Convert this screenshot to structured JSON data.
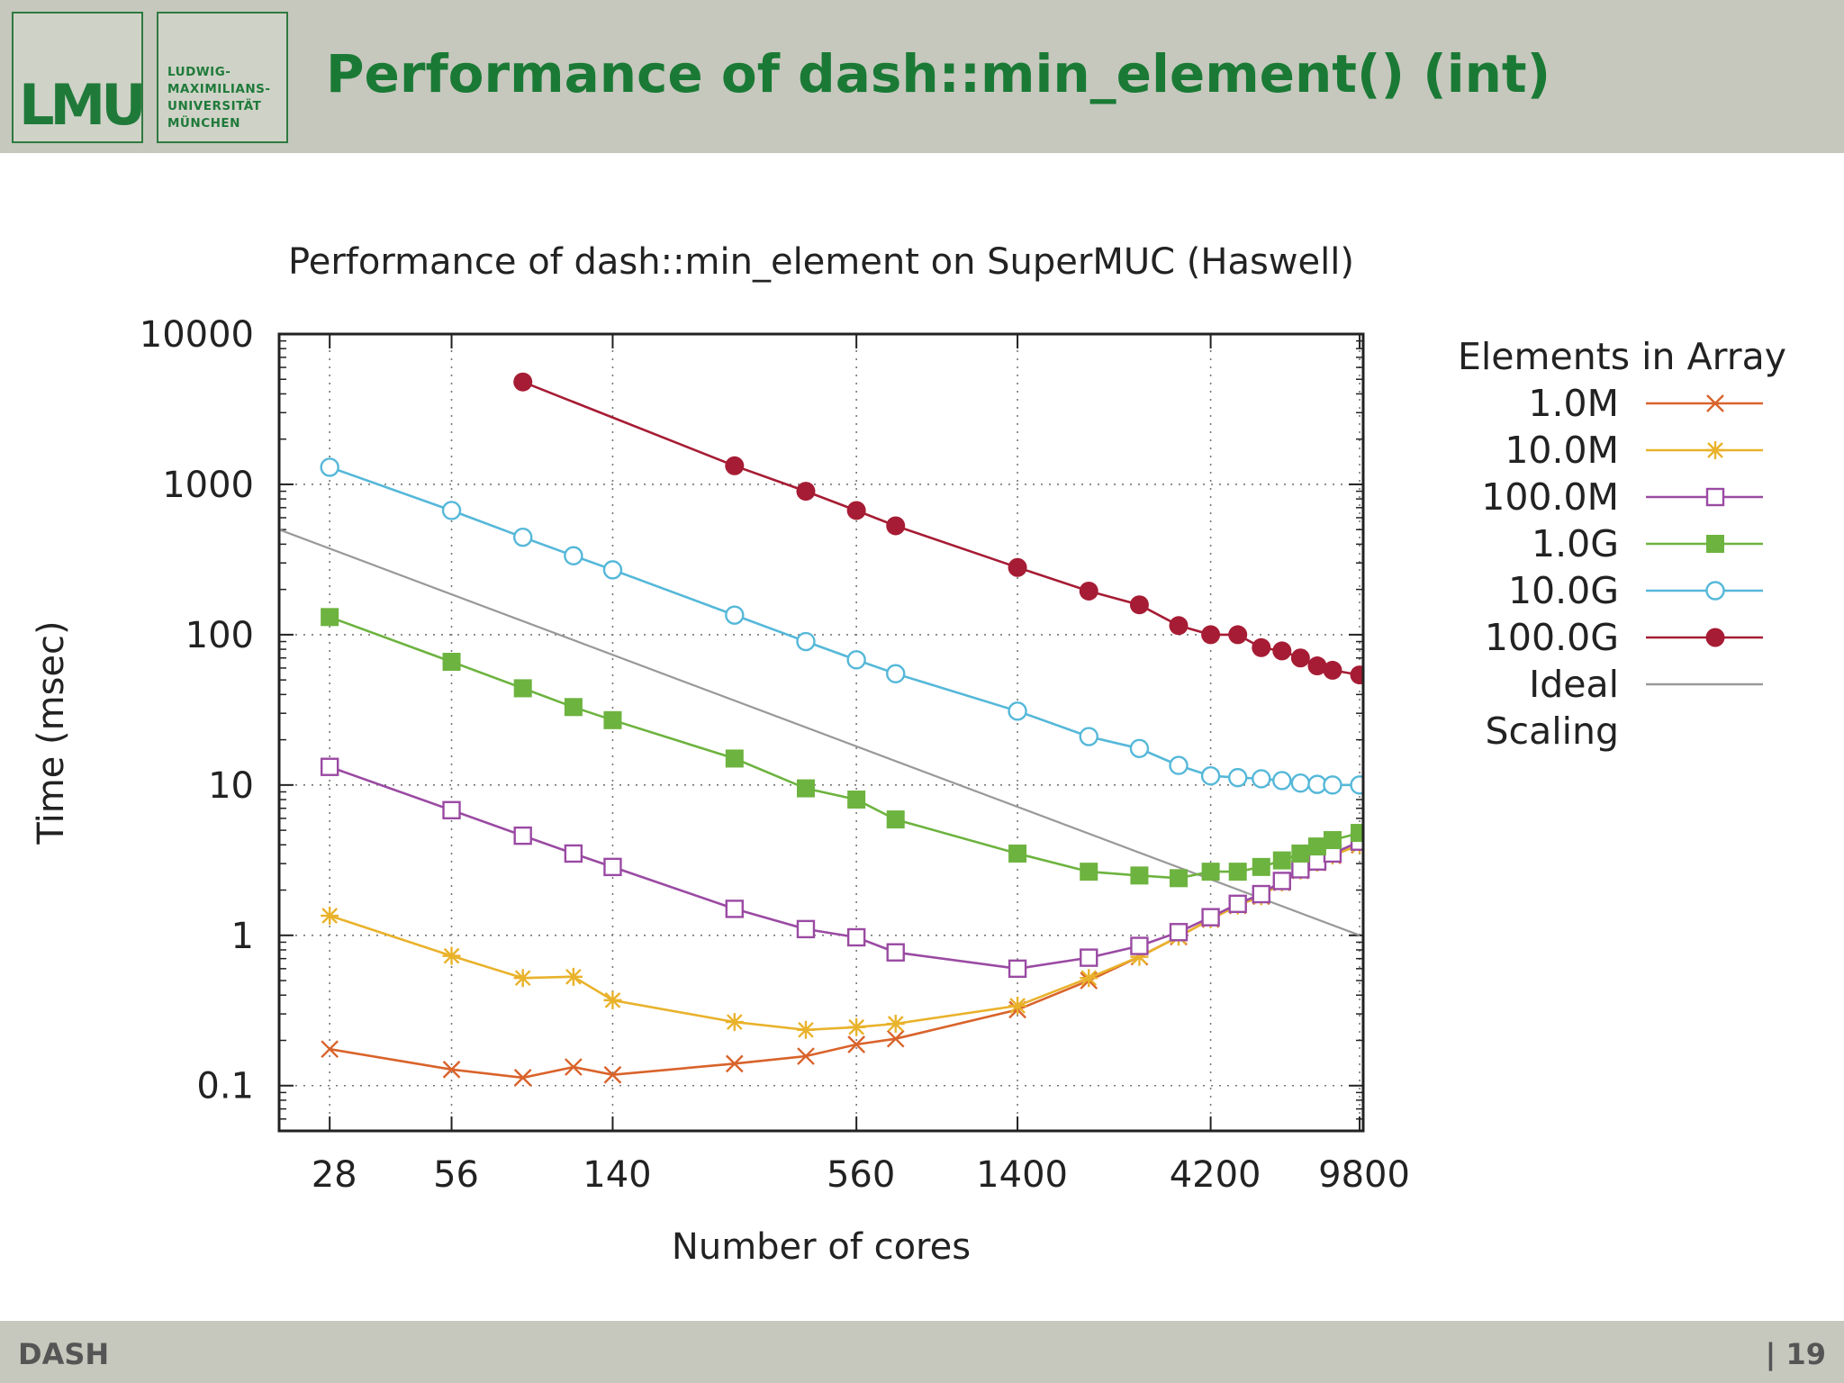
{
  "header": {
    "logo_mark": "LMU",
    "logo_name_lines": [
      "LUDWIG-",
      "MAXIMILIANS-",
      "UNIVERSITÄT",
      "MÜNCHEN"
    ],
    "title": "Performance of dash::min_element() (int)",
    "accent_color": "#1a7a35"
  },
  "footer": {
    "left": "DASH",
    "right": "| 19"
  },
  "chart_data": {
    "type": "line",
    "title": "Performance of dash::min_element on SuperMUC (Haswell)",
    "xlabel": "Number of cores",
    "ylabel": "Time (msec)",
    "xscale": "log",
    "yscale": "log",
    "xlim": [
      21,
      10000
    ],
    "ylim": [
      0.05,
      10000
    ],
    "xticks": [
      28,
      56,
      140,
      560,
      1400,
      4200,
      9800
    ],
    "xtick_labels": [
      "28",
      "56",
      "140",
      "560",
      "1400",
      "4200",
      "9800"
    ],
    "yticks": [
      0.1,
      1,
      10,
      100,
      1000,
      10000
    ],
    "ytick_labels": [
      "0.1",
      "1",
      "10",
      "100",
      "1000",
      "10000"
    ],
    "grid": true,
    "legend_title": "Elements in Array",
    "legend_position": "right",
    "series": [
      {
        "name": "1.0M",
        "color": "#d9632b",
        "marker": "x",
        "points": [
          [
            28,
            0.175
          ],
          [
            56,
            0.128
          ],
          [
            84,
            0.113
          ],
          [
            112,
            0.133
          ],
          [
            140,
            0.118
          ],
          [
            280,
            0.14
          ],
          [
            420,
            0.157
          ],
          [
            560,
            0.188
          ],
          [
            700,
            0.205
          ],
          [
            1400,
            0.32
          ],
          [
            2100,
            0.5
          ],
          [
            2800,
            0.72
          ],
          [
            3500,
            0.98
          ],
          [
            4200,
            1.28
          ],
          [
            4900,
            1.58
          ],
          [
            5600,
            1.82
          ],
          [
            6300,
            2.25
          ],
          [
            7000,
            2.7
          ],
          [
            7700,
            3.05
          ],
          [
            8400,
            3.4
          ],
          [
            9800,
            4.0
          ]
        ]
      },
      {
        "name": "10.0M",
        "color": "#e9b22b",
        "marker": "star",
        "points": [
          [
            28,
            1.35
          ],
          [
            56,
            0.73
          ],
          [
            84,
            0.52
          ],
          [
            112,
            0.53
          ],
          [
            140,
            0.37
          ],
          [
            280,
            0.265
          ],
          [
            420,
            0.235
          ],
          [
            560,
            0.245
          ],
          [
            700,
            0.258
          ],
          [
            1400,
            0.34
          ],
          [
            2100,
            0.52
          ],
          [
            2800,
            0.72
          ],
          [
            3500,
            0.98
          ],
          [
            4200,
            1.28
          ],
          [
            4900,
            1.58
          ],
          [
            5600,
            1.82
          ],
          [
            6300,
            2.25
          ],
          [
            7000,
            2.7
          ],
          [
            7700,
            3.05
          ],
          [
            8400,
            3.4
          ],
          [
            9800,
            4.0
          ]
        ]
      },
      {
        "name": "100.0M",
        "color": "#9a4aa3",
        "marker": "open-square",
        "points": [
          [
            28,
            13.2
          ],
          [
            56,
            6.8
          ],
          [
            84,
            4.6
          ],
          [
            112,
            3.5
          ],
          [
            140,
            2.85
          ],
          [
            280,
            1.5
          ],
          [
            420,
            1.1
          ],
          [
            560,
            0.97
          ],
          [
            700,
            0.77
          ],
          [
            1400,
            0.6
          ],
          [
            2100,
            0.71
          ],
          [
            2800,
            0.85
          ],
          [
            3500,
            1.05
          ],
          [
            4200,
            1.32
          ],
          [
            4900,
            1.62
          ],
          [
            5600,
            1.88
          ],
          [
            6300,
            2.3
          ],
          [
            7000,
            2.75
          ],
          [
            7700,
            3.1
          ],
          [
            8400,
            3.5
          ],
          [
            9800,
            4.2
          ]
        ]
      },
      {
        "name": "1.0G",
        "color": "#6db33f",
        "marker": "filled-square",
        "points": [
          [
            28,
            131
          ],
          [
            56,
            66
          ],
          [
            84,
            44
          ],
          [
            112,
            33
          ],
          [
            140,
            27
          ],
          [
            280,
            15
          ],
          [
            420,
            9.5
          ],
          [
            560,
            8
          ],
          [
            700,
            5.9
          ],
          [
            1400,
            3.5
          ],
          [
            2100,
            2.65
          ],
          [
            2800,
            2.5
          ],
          [
            3500,
            2.4
          ],
          [
            4200,
            2.65
          ],
          [
            4900,
            2.65
          ],
          [
            5600,
            2.85
          ],
          [
            6300,
            3.15
          ],
          [
            7000,
            3.5
          ],
          [
            7700,
            3.9
          ],
          [
            8400,
            4.3
          ],
          [
            9800,
            4.8
          ]
        ]
      },
      {
        "name": "10.0G",
        "color": "#55b8d9",
        "marker": "open-circle",
        "points": [
          [
            28,
            1300
          ],
          [
            56,
            670
          ],
          [
            84,
            445
          ],
          [
            112,
            335
          ],
          [
            140,
            270
          ],
          [
            280,
            135
          ],
          [
            420,
            90
          ],
          [
            560,
            68
          ],
          [
            700,
            55
          ],
          [
            1400,
            31
          ],
          [
            2100,
            21
          ],
          [
            2800,
            17.5
          ],
          [
            3500,
            13.5
          ],
          [
            4200,
            11.5
          ],
          [
            4900,
            11.2
          ],
          [
            5600,
            11
          ],
          [
            6300,
            10.7
          ],
          [
            7000,
            10.3
          ],
          [
            7700,
            10.1
          ],
          [
            8400,
            10
          ],
          [
            9800,
            10
          ]
        ]
      },
      {
        "name": "100.0G",
        "color": "#a61c34",
        "marker": "filled-circle",
        "points": [
          [
            84,
            4800
          ],
          [
            280,
            1330
          ],
          [
            420,
            900
          ],
          [
            560,
            670
          ],
          [
            700,
            530
          ],
          [
            1400,
            280
          ],
          [
            2100,
            195
          ],
          [
            2800,
            158
          ],
          [
            3500,
            115
          ],
          [
            4200,
            100
          ],
          [
            4900,
            100
          ],
          [
            5600,
            82
          ],
          [
            6300,
            78
          ],
          [
            7000,
            70
          ],
          [
            7700,
            62
          ],
          [
            8400,
            58
          ],
          [
            9800,
            54
          ]
        ]
      },
      {
        "name": "Ideal Scaling",
        "name_lines": [
          "Ideal",
          "Scaling"
        ],
        "color": "#999999",
        "marker": "none",
        "points": [
          [
            21,
            500
          ],
          [
            9800,
            1
          ]
        ]
      }
    ]
  }
}
